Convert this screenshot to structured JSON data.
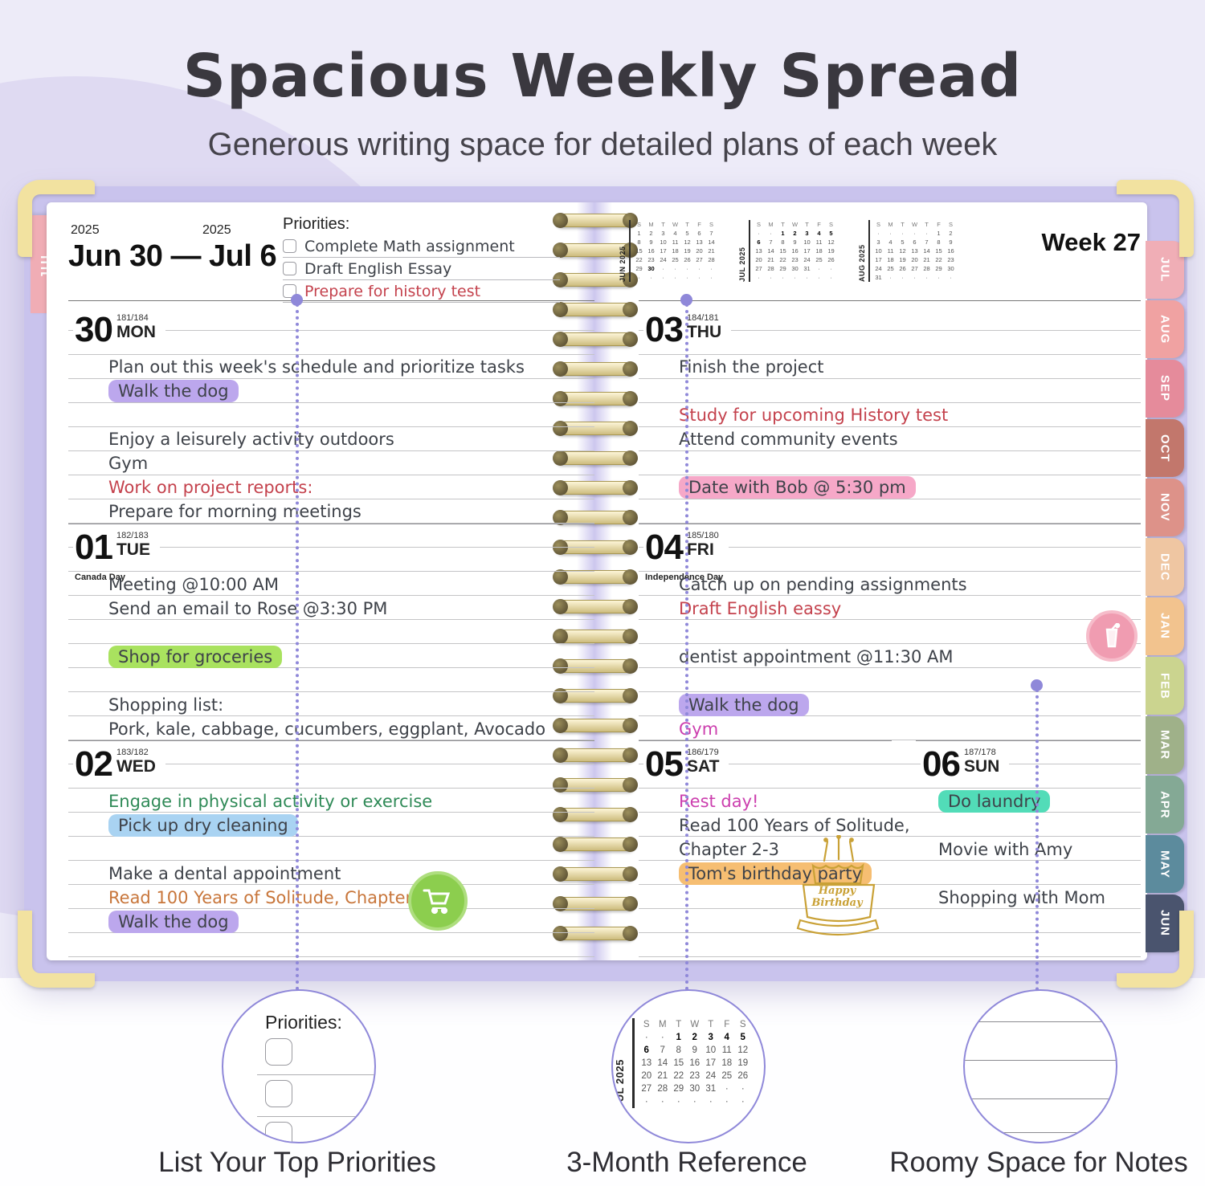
{
  "header": {
    "title": "Spacious Weekly Spread",
    "subtitle": "Generous writing space for detailed plans of each week"
  },
  "planner": {
    "left_tab": "JUL",
    "week_label": "Week 27",
    "left_header": {
      "year_left": "2025",
      "year_right": "2025",
      "range": "Jun 30 — Jul 6"
    },
    "priorities": {
      "label": "Priorities:",
      "items": [
        {
          "text": "Complete Math assignment",
          "ink": "dark"
        },
        {
          "text": "Draft English Essay",
          "ink": "dark"
        },
        {
          "text": "Prepare for history test",
          "ink": "red"
        }
      ]
    },
    "mini_calendars": [
      {
        "label": "JUN 2025",
        "weekdays": [
          "S",
          "M",
          "T",
          "W",
          "T",
          "F",
          "S"
        ],
        "bold": [
          "30"
        ],
        "rows": [
          [
            "1",
            "2",
            "3",
            "4",
            "5",
            "6",
            "7"
          ],
          [
            "8",
            "9",
            "10",
            "11",
            "12",
            "13",
            "14"
          ],
          [
            "15",
            "16",
            "17",
            "18",
            "19",
            "20",
            "21"
          ],
          [
            "22",
            "23",
            "24",
            "25",
            "26",
            "27",
            "28"
          ],
          [
            "29",
            "30",
            "·",
            "·",
            "·",
            "·",
            "·"
          ],
          [
            "·",
            "·",
            "·",
            "·",
            "·",
            "·",
            "·"
          ]
        ]
      },
      {
        "label": "JUL 2025",
        "weekdays": [
          "S",
          "M",
          "T",
          "W",
          "T",
          "F",
          "S"
        ],
        "bold": [
          "1",
          "2",
          "3",
          "4",
          "5",
          "6"
        ],
        "rows": [
          [
            "·",
            "·",
            "1",
            "2",
            "3",
            "4",
            "5"
          ],
          [
            "6",
            "7",
            "8",
            "9",
            "10",
            "11",
            "12"
          ],
          [
            "13",
            "14",
            "15",
            "16",
            "17",
            "18",
            "19"
          ],
          [
            "20",
            "21",
            "22",
            "23",
            "24",
            "25",
            "26"
          ],
          [
            "27",
            "28",
            "29",
            "30",
            "31",
            "·",
            "·"
          ],
          [
            "·",
            "·",
            "·",
            "·",
            "·",
            "·",
            "·"
          ]
        ]
      },
      {
        "label": "AUG 2025",
        "weekdays": [
          "S",
          "M",
          "T",
          "W",
          "T",
          "F",
          "S"
        ],
        "bold": [],
        "rows": [
          [
            "·",
            "·",
            "·",
            "·",
            "·",
            "1",
            "2"
          ],
          [
            "3",
            "4",
            "5",
            "6",
            "7",
            "8",
            "9"
          ],
          [
            "10",
            "11",
            "12",
            "13",
            "14",
            "15",
            "16"
          ],
          [
            "17",
            "18",
            "19",
            "20",
            "21",
            "22",
            "23"
          ],
          [
            "24",
            "25",
            "26",
            "27",
            "28",
            "29",
            "30"
          ],
          [
            "31",
            "·",
            "·",
            "·",
            "·",
            "·",
            "·"
          ]
        ]
      }
    ],
    "days": [
      {
        "abbr": "MON",
        "num": "30",
        "doy": "181/184",
        "holiday": "",
        "entries": [
          {
            "row": 2,
            "text": "Plan out this week's schedule and prioritize tasks",
            "ink": "dark"
          },
          {
            "row": 3,
            "text": "Walk the dog",
            "ink": "dark",
            "hl": "purple"
          },
          {
            "row": 5,
            "text": "Enjoy a leisurely activity outdoors",
            "ink": "dark"
          },
          {
            "row": 6,
            "text": "Gym",
            "ink": "dark"
          },
          {
            "row": 7,
            "text": "Work on project reports:",
            "ink": "red"
          },
          {
            "row": 8,
            "text": "Prepare for morning meetings",
            "ink": "dark"
          }
        ]
      },
      {
        "abbr": "TUE",
        "num": "01",
        "doy": "182/183",
        "holiday": "Canada Day",
        "entries": [
          {
            "row": 2,
            "text": "Meeting @10:00 AM",
            "ink": "dark"
          },
          {
            "row": 3,
            "text": "Send an email to Rose @3:30 PM",
            "ink": "dark"
          },
          {
            "row": 5,
            "text": "Shop for groceries",
            "ink": "dark",
            "hl": "green"
          },
          {
            "row": 7,
            "text": "Shopping list:",
            "ink": "dark"
          },
          {
            "row": 8,
            "text": "Pork, kale, cabbage, cucumbers, eggplant, Avocado",
            "ink": "dark"
          }
        ]
      },
      {
        "abbr": "WED",
        "num": "02",
        "doy": "183/182",
        "holiday": "",
        "entries": [
          {
            "row": 2,
            "text": "Engage in physical activity or exercise",
            "ink": "green"
          },
          {
            "row": 3,
            "text": "Pick up dry cleaning",
            "ink": "dark",
            "hl": "blue"
          },
          {
            "row": 5,
            "text": "Make a dental appointment",
            "ink": "dark"
          },
          {
            "row": 6,
            "text": "Read 100 Years of Solitude, Chapter 1",
            "ink": "orange"
          },
          {
            "row": 7,
            "text": "Walk the dog",
            "ink": "dark",
            "hl": "purple"
          }
        ]
      },
      {
        "abbr": "THU",
        "num": "03",
        "doy": "184/181",
        "holiday": "",
        "entries": [
          {
            "row": 2,
            "text": "Finish the project",
            "ink": "dark"
          },
          {
            "row": 4,
            "text": "Study for upcoming History test",
            "ink": "red"
          },
          {
            "row": 5,
            "text": "Attend community events",
            "ink": "dark"
          },
          {
            "row": 7,
            "text": "Date with Bob @ 5:30 pm",
            "ink": "dark",
            "hl": "pink"
          }
        ]
      },
      {
        "abbr": "FRI",
        "num": "04",
        "doy": "185/180",
        "holiday": "Independence Day",
        "entries": [
          {
            "row": 2,
            "text": "Catch up on pending assignments",
            "ink": "dark"
          },
          {
            "row": 3,
            "text": "Draft English eassy",
            "ink": "red"
          },
          {
            "row": 5,
            "text": "dentist appointment @11:30 AM",
            "ink": "dark"
          },
          {
            "row": 7,
            "text": "Walk the dog",
            "ink": "dark",
            "hl": "purple"
          },
          {
            "row": 8,
            "text": "Gym",
            "ink": "magenta"
          }
        ]
      },
      {
        "abbr": "SAT",
        "num": "05",
        "doy": "186/179",
        "holiday": "",
        "entries": [
          {
            "row": 2,
            "text": "Rest day!",
            "ink": "magenta"
          },
          {
            "row": 3,
            "text": "Read 100 Years of Solitude,",
            "ink": "dark"
          },
          {
            "row": 4,
            "text": "Chapter 2-3",
            "ink": "dark"
          },
          {
            "row": 5,
            "text": "Tom's birthday party",
            "ink": "dark",
            "hl": "orange"
          }
        ]
      },
      {
        "abbr": "SUN",
        "num": "06",
        "doy": "187/178",
        "holiday": "",
        "entries": [
          {
            "row": 2,
            "text": "Do laundry",
            "ink": "dark",
            "hl": "teal"
          },
          {
            "row": 4,
            "text": "Movie with Amy",
            "ink": "dark"
          },
          {
            "row": 6,
            "text": "Shopping with Mom",
            "ink": "dark"
          }
        ]
      }
    ],
    "month_tabs": [
      {
        "label": "JUL",
        "color": "#F0AEB6"
      },
      {
        "label": "AUG",
        "color": "#F0A2A2"
      },
      {
        "label": "SEP",
        "color": "#E58B9B"
      },
      {
        "label": "OCT",
        "color": "#C2776C"
      },
      {
        "label": "NOV",
        "color": "#DD9289"
      },
      {
        "label": "DEC",
        "color": "#EFC6A2"
      },
      {
        "label": "JAN",
        "color": "#F2C38E"
      },
      {
        "label": "FEB",
        "color": "#CBD48F"
      },
      {
        "label": "MAR",
        "color": "#9FB189"
      },
      {
        "label": "APR",
        "color": "#84A995"
      },
      {
        "label": "MAY",
        "color": "#5C8B9D"
      },
      {
        "label": "JUN",
        "color": "#4A546E"
      }
    ],
    "icons": {
      "cart": "shopping-cart-icon",
      "drink": "drink-icon",
      "cake_text": "Happy Birthday"
    }
  },
  "callouts": [
    {
      "caption": "List Your Top Priorities",
      "type": "priorities"
    },
    {
      "caption": "3-Month Reference",
      "type": "calendar"
    },
    {
      "caption": "Roomy Space for Notes",
      "type": "notes"
    }
  ],
  "colors": {
    "background": "#EDEBF8",
    "cover": "#C9C3ED",
    "corner": "#F2E2A0",
    "left_tab": "#F0ADB5",
    "dotted_connector": "#8F88D9",
    "inks": {
      "dark": "#3E4249",
      "red": "#C4424D",
      "green": "#2F8A57",
      "orange": "#C8763B",
      "magenta": "#CC3FAE"
    },
    "highlights": {
      "purple": "#BCA7ED",
      "green": "#A9E25F",
      "blue": "#A9D3F2",
      "pink": "#F6A8C8",
      "orange": "#F6BE72",
      "teal": "#52DCB8"
    },
    "cart_badge": "#8CCE4E",
    "drink_badge": "#F09CB1",
    "cake": "#C9A136"
  }
}
